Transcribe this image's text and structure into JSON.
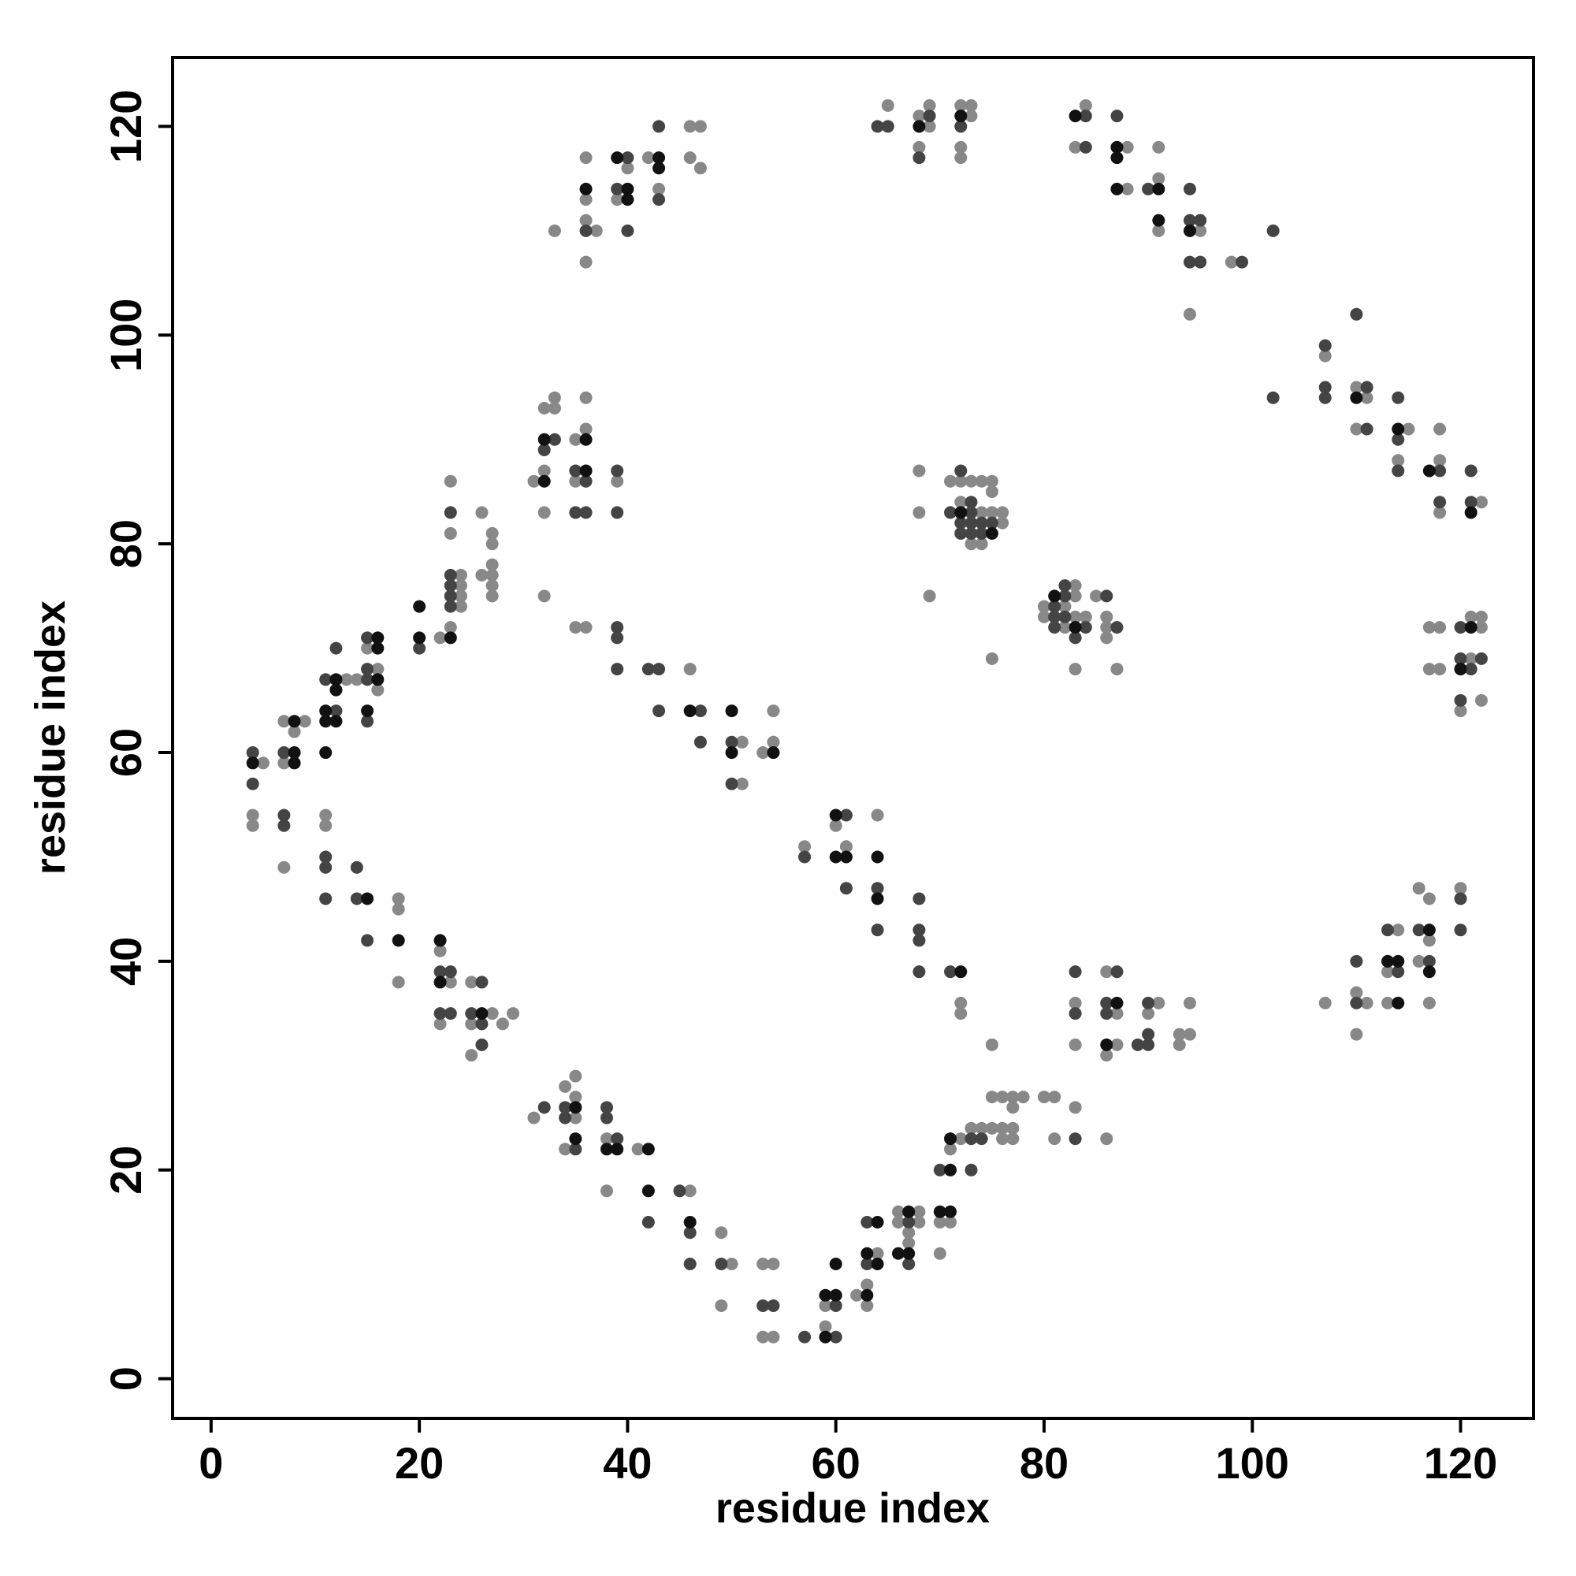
{
  "chart_data": {
    "type": "scatter",
    "x_label": "residue index",
    "y_label": "residue index",
    "xlim": [
      -3.7,
      127
    ],
    "ylim": [
      -3.8,
      126.6
    ],
    "xticks": [
      0,
      20,
      40,
      60,
      80,
      100,
      120
    ],
    "yticks": [
      0,
      20,
      40,
      60,
      80,
      100,
      120
    ],
    "grid": false,
    "frame": true,
    "series": [
      {
        "color": "#888888",
        "x": [
          5,
          4,
          4,
          7,
          7,
          8,
          9,
          7,
          13,
          14,
          11,
          11,
          15,
          16,
          16,
          18,
          18,
          18,
          22,
          22,
          22,
          23,
          23,
          23,
          23,
          24,
          24,
          24,
          24,
          25,
          25,
          25,
          26,
          26,
          27,
          27,
          27,
          27,
          27,
          27,
          27,
          28,
          29,
          31,
          32,
          32,
          32,
          33,
          33,
          32,
          35,
          35,
          36,
          36,
          39,
          35,
          36,
          46,
          51,
          51,
          53,
          54,
          54,
          33,
          36,
          36,
          36,
          36,
          37,
          39,
          40,
          42,
          43,
          46,
          46,
          47,
          47,
          65,
          68,
          68,
          69,
          69,
          72,
          72,
          72,
          73,
          73,
          83,
          84,
          88,
          88,
          91,
          91,
          91,
          95,
          94,
          98,
          107,
          110,
          110,
          111,
          114,
          115,
          118,
          118,
          118,
          122,
          117,
          118,
          117,
          118,
          120,
          121,
          121,
          122,
          122,
          122,
          68,
          68,
          69,
          71,
          72,
          72,
          73,
          73,
          74,
          74,
          74,
          75,
          75,
          75,
          76,
          76,
          75,
          80,
          80,
          82,
          82,
          83,
          83,
          83,
          83,
          84,
          85,
          86,
          86,
          86,
          87,
          57,
          60,
          61,
          64,
          72,
          72,
          75,
          83,
          83,
          86,
          86,
          87,
          87,
          90,
          91,
          93,
          93,
          94,
          94,
          107,
          110,
          110,
          111,
          113,
          113,
          114,
          116,
          116,
          117,
          117,
          117,
          120,
          31,
          34,
          34,
          35,
          35,
          35,
          38,
          38,
          41,
          46,
          49,
          49,
          50,
          53,
          53,
          54,
          54,
          59,
          59,
          62,
          63,
          63,
          64,
          66,
          66,
          67,
          67,
          68,
          68,
          70,
          70,
          71,
          71,
          72,
          73,
          74,
          75,
          75,
          76,
          76,
          76,
          77,
          77,
          77,
          77,
          78,
          80,
          81,
          81,
          83,
          86
        ],
        "values": [
          59,
          54,
          53,
          63,
          59,
          62,
          63,
          49,
          67,
          67,
          54,
          53,
          70,
          68,
          66,
          46,
          45,
          38,
          71,
          41,
          34,
          86,
          81,
          72,
          38,
          77,
          76,
          75,
          74,
          38,
          34,
          31,
          83,
          77,
          81,
          80,
          78,
          77,
          76,
          75,
          35,
          34,
          35,
          86,
          93,
          87,
          83,
          94,
          93,
          75,
          90,
          86,
          94,
          91,
          86,
          72,
          72,
          68,
          61,
          57,
          60,
          64,
          61,
          110,
          117,
          113,
          111,
          107,
          110,
          113,
          116,
          117,
          114,
          120,
          117,
          120,
          116,
          122,
          121,
          118,
          122,
          120,
          122,
          118,
          117,
          122,
          121,
          118,
          122,
          118,
          114,
          118,
          115,
          110,
          110,
          102,
          107,
          98,
          95,
          91,
          94,
          88,
          91,
          91,
          88,
          83,
          84,
          72,
          72,
          68,
          68,
          64,
          73,
          69,
          73,
          72,
          65,
          87,
          83,
          75,
          86,
          86,
          84,
          86,
          80,
          86,
          83,
          80,
          86,
          85,
          83,
          83,
          82,
          69,
          74,
          73,
          74,
          72,
          76,
          75,
          73,
          68,
          73,
          75,
          73,
          72,
          71,
          68,
          51,
          53,
          51,
          54,
          36,
          35,
          32,
          36,
          32,
          39,
          31,
          35,
          32,
          35,
          36,
          33,
          32,
          36,
          33,
          36,
          37,
          33,
          36,
          39,
          36,
          43,
          47,
          40,
          46,
          42,
          36,
          47,
          25,
          28,
          22,
          29,
          27,
          25,
          23,
          18,
          22,
          18,
          14,
          7,
          11,
          11,
          4,
          11,
          4,
          7,
          5,
          8,
          9,
          7,
          12,
          16,
          15,
          14,
          13,
          16,
          15,
          15,
          12,
          22,
          15,
          23,
          24,
          24,
          27,
          24,
          27,
          24,
          23,
          27,
          26,
          24,
          23,
          27,
          27,
          27,
          23,
          26,
          23
        ]
      },
      {
        "color": "#444444",
        "x": [
          4,
          4,
          7,
          7,
          7,
          11,
          11,
          11,
          11,
          12,
          12,
          14,
          14,
          15,
          15,
          15,
          15,
          15,
          20,
          22,
          22,
          23,
          23,
          23,
          23,
          23,
          23,
          23,
          25,
          26,
          26,
          26,
          32,
          33,
          35,
          35,
          36,
          36,
          39,
          39,
          39,
          39,
          39,
          42,
          43,
          43,
          47,
          47,
          50,
          50,
          36,
          39,
          40,
          40,
          43,
          43,
          64,
          65,
          68,
          69,
          72,
          84,
          84,
          87,
          90,
          94,
          94,
          94,
          95,
          95,
          99,
          102,
          102,
          107,
          107,
          107,
          110,
          111,
          111,
          114,
          114,
          114,
          118,
          118,
          121,
          121,
          120,
          120,
          120,
          121,
          122,
          71,
          72,
          72,
          72,
          73,
          73,
          73,
          73,
          74,
          74,
          75,
          81,
          81,
          81,
          82,
          82,
          82,
          83,
          84,
          86,
          87,
          57,
          61,
          61,
          64,
          64,
          68,
          68,
          68,
          68,
          71,
          83,
          83,
          86,
          86,
          87,
          89,
          90,
          90,
          90,
          110,
          110,
          113,
          114,
          116,
          117,
          120,
          120,
          32,
          34,
          34,
          35,
          38,
          38,
          39,
          42,
          45,
          46,
          46,
          49,
          53,
          54,
          57,
          60,
          60,
          63,
          63,
          67,
          67,
          70,
          73,
          73,
          74,
          83
        ],
        "values": [
          60,
          57,
          60,
          54,
          53,
          67,
          50,
          49,
          46,
          70,
          64,
          49,
          46,
          71,
          68,
          67,
          63,
          42,
          70,
          39,
          35,
          83,
          77,
          76,
          75,
          74,
          39,
          35,
          35,
          38,
          34,
          32,
          89,
          90,
          87,
          83,
          86,
          83,
          87,
          83,
          72,
          71,
          68,
          68,
          68,
          64,
          64,
          61,
          61,
          57,
          110,
          114,
          117,
          110,
          120,
          113,
          120,
          120,
          117,
          121,
          120,
          121,
          118,
          121,
          114,
          114,
          111,
          107,
          111,
          107,
          107,
          110,
          94,
          99,
          95,
          94,
          102,
          95,
          91,
          94,
          90,
          87,
          87,
          84,
          87,
          84,
          72,
          69,
          65,
          68,
          69,
          83,
          87,
          82,
          81,
          84,
          83,
          82,
          81,
          82,
          81,
          82,
          74,
          73,
          72,
          76,
          75,
          73,
          71,
          72,
          75,
          72,
          50,
          54,
          47,
          47,
          43,
          46,
          43,
          42,
          39,
          39,
          39,
          35,
          36,
          35,
          39,
          32,
          36,
          33,
          32,
          40,
          36,
          43,
          39,
          43,
          40,
          46,
          43,
          26,
          26,
          25,
          22,
          26,
          25,
          23,
          15,
          18,
          14,
          11,
          11,
          7,
          7,
          4,
          7,
          4,
          15,
          11,
          15,
          11,
          20,
          23,
          20,
          23,
          23
        ]
      },
      {
        "color": "#111111",
        "x": [
          4,
          8,
          8,
          8,
          11,
          11,
          11,
          12,
          12,
          12,
          15,
          15,
          16,
          16,
          16,
          18,
          20,
          20,
          22,
          22,
          23,
          26,
          32,
          32,
          36,
          36,
          46,
          50,
          50,
          54,
          36,
          39,
          40,
          40,
          43,
          43,
          68,
          72,
          83,
          87,
          87,
          87,
          91,
          91,
          94,
          110,
          114,
          117,
          121,
          120,
          121,
          72,
          75,
          81,
          83,
          60,
          60,
          61,
          64,
          64,
          72,
          86,
          87,
          113,
          114,
          114,
          117,
          117,
          35,
          35,
          38,
          39,
          42,
          42,
          46,
          59,
          59,
          60,
          60,
          63,
          63,
          64,
          64,
          66,
          67,
          67,
          70,
          71,
          71,
          71
        ],
        "values": [
          59,
          63,
          60,
          59,
          64,
          63,
          60,
          67,
          66,
          63,
          64,
          46,
          71,
          70,
          67,
          42,
          74,
          71,
          42,
          38,
          71,
          35,
          90,
          86,
          90,
          87,
          64,
          64,
          60,
          60,
          114,
          117,
          114,
          113,
          117,
          116,
          120,
          121,
          121,
          118,
          117,
          114,
          114,
          111,
          110,
          94,
          91,
          87,
          83,
          68,
          72,
          83,
          81,
          75,
          72,
          54,
          50,
          50,
          50,
          46,
          39,
          32,
          36,
          40,
          40,
          36,
          43,
          39,
          26,
          23,
          22,
          22,
          22,
          18,
          15,
          8,
          4,
          11,
          8,
          12,
          8,
          15,
          11,
          12,
          16,
          12,
          16,
          23,
          20,
          16
        ]
      }
    ]
  }
}
